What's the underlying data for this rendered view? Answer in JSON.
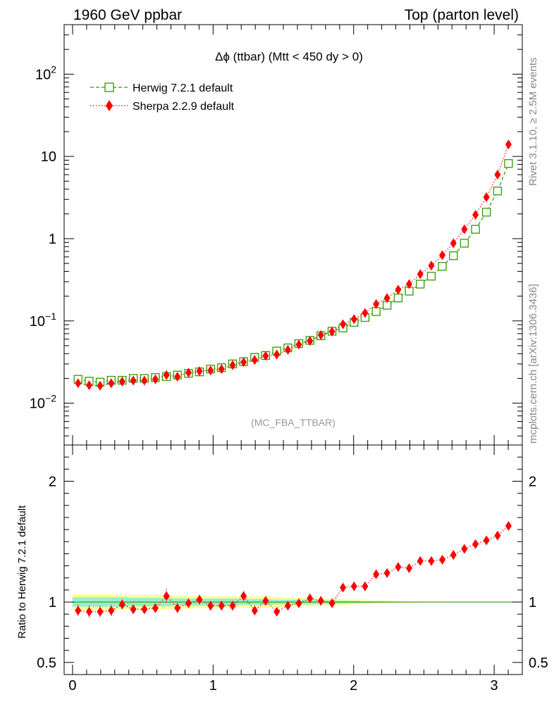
{
  "header": {
    "left": "1960 GeV ppbar",
    "right": "Top (parton level)"
  },
  "side_labels": {
    "rivet": "Rivet 3.1.10, ≥ 2.5M events",
    "mcplots": "mcplots.cern.ch [arXiv:1306.3436]"
  },
  "chart_data": {
    "type": "scatter",
    "title": "Δϕ (ttbar) (Mtt < 450 dy > 0)",
    "analysis_tag": "(MC_FBA_TTBAR)",
    "xlabel": "",
    "xlim": [
      -0.06,
      3.2
    ],
    "x_ticks": [
      "0",
      "1",
      "2",
      "3"
    ],
    "main": {
      "yscale": "log",
      "ylim": [
        0.0031,
        400
      ],
      "y_ticks": [
        {
          "value": 0.01,
          "base": "10",
          "exp": "−2"
        },
        {
          "value": 0.1,
          "base": "10",
          "exp": "−1"
        },
        {
          "value": 1,
          "base": "1",
          "exp": ""
        },
        {
          "value": 10,
          "base": "10",
          "exp": ""
        },
        {
          "value": 100,
          "base": "10",
          "exp": "2"
        }
      ]
    },
    "ratio": {
      "ylabel": "Ratio to Herwig 7.2.1 default",
      "ylim": [
        0.4,
        2.3
      ],
      "y_ticks": [
        "0.5",
        "1",
        "2"
      ],
      "y_tick_values": [
        0.5,
        1,
        2
      ],
      "band_inner": [
        0.04,
        0.04,
        0.04,
        0.04,
        0.04,
        0.035,
        0.035,
        0.035,
        0.035,
        0.03,
        0.03,
        0.03,
        0.03,
        0.03,
        0.03,
        0.025,
        0.025,
        0.025,
        0.02,
        0.02,
        0.02,
        0.02,
        0.015,
        0.015,
        0.012,
        0.01,
        0.008,
        0.006,
        0.005,
        0.004,
        0.003,
        0.003,
        0.002,
        0.002,
        0.002,
        0.001,
        0.001,
        0.001,
        0.001,
        0.001
      ],
      "band_outer": [
        0.065,
        0.065,
        0.065,
        0.065,
        0.06,
        0.06,
        0.06,
        0.06,
        0.06,
        0.055,
        0.055,
        0.05,
        0.05,
        0.05,
        0.05,
        0.045,
        0.045,
        0.045,
        0.04,
        0.04,
        0.035,
        0.035,
        0.03,
        0.03,
        0.025,
        0.02,
        0.016,
        0.012,
        0.01,
        0.008,
        0.006,
        0.005,
        0.004,
        0.003,
        0.003,
        0.002,
        0.002,
        0.002,
        0.002,
        0.002
      ]
    },
    "x": [
      0.039,
      0.118,
      0.196,
      0.275,
      0.353,
      0.432,
      0.511,
      0.589,
      0.668,
      0.746,
      0.825,
      0.903,
      0.982,
      1.06,
      1.139,
      1.217,
      1.296,
      1.374,
      1.453,
      1.532,
      1.61,
      1.689,
      1.767,
      1.846,
      1.924,
      2.003,
      2.081,
      2.16,
      2.238,
      2.317,
      2.395,
      2.474,
      2.553,
      2.631,
      2.71,
      2.788,
      2.867,
      2.945,
      3.024,
      3.102
    ],
    "series": [
      {
        "name": "Herwig 7.2.1 default",
        "color": "#339900",
        "marker": "open-square",
        "line": "dashed",
        "values": [
          0.0195,
          0.0185,
          0.018,
          0.019,
          0.019,
          0.02,
          0.02,
          0.0205,
          0.021,
          0.022,
          0.023,
          0.024,
          0.026,
          0.027,
          0.03,
          0.032,
          0.036,
          0.038,
          0.043,
          0.047,
          0.053,
          0.058,
          0.066,
          0.075,
          0.082,
          0.096,
          0.11,
          0.13,
          0.155,
          0.19,
          0.23,
          0.28,
          0.35,
          0.46,
          0.62,
          0.88,
          1.3,
          2.1,
          3.8,
          8.2
        ],
        "ratio": [
          1.0,
          1.0,
          1.0,
          1.0,
          1.0,
          1.0,
          1.0,
          1.0,
          1.0,
          1.0,
          1.0,
          1.0,
          1.0,
          1.0,
          1.0,
          1.0,
          1.0,
          1.0,
          1.0,
          1.0,
          1.0,
          1.0,
          1.0,
          1.0,
          1.0,
          1.0,
          1.0,
          1.0,
          1.0,
          1.0,
          1.0,
          1.0,
          1.0,
          1.0,
          1.0,
          1.0,
          1.0,
          1.0,
          1.0,
          1.0
        ]
      },
      {
        "name": "Sherpa 2.2.9 default",
        "color": "#ff0000",
        "marker": "filled-diamond",
        "line": "dotted",
        "values": [
          0.0175,
          0.0165,
          0.0163,
          0.0175,
          0.0183,
          0.0188,
          0.0188,
          0.0195,
          0.022,
          0.021,
          0.0235,
          0.0245,
          0.025,
          0.026,
          0.029,
          0.0315,
          0.0335,
          0.0375,
          0.039,
          0.0445,
          0.0515,
          0.057,
          0.0675,
          0.074,
          0.091,
          0.105,
          0.125,
          0.16,
          0.19,
          0.24,
          0.28,
          0.37,
          0.47,
          0.63,
          0.88,
          1.3,
          1.95,
          3.2,
          6.0,
          14.0
        ],
        "ratio": [
          0.93,
          0.92,
          0.92,
          0.93,
          0.98,
          0.94,
          0.94,
          0.95,
          1.05,
          0.95,
          0.99,
          1.02,
          0.97,
          0.97,
          0.97,
          1.05,
          0.93,
          1.01,
          0.92,
          0.97,
          0.99,
          1.03,
          1.01,
          0.99,
          1.12,
          1.13,
          1.13,
          1.23,
          1.24,
          1.29,
          1.28,
          1.34,
          1.34,
          1.35,
          1.39,
          1.44,
          1.48,
          1.51,
          1.55,
          1.63
        ],
        "ratio_err": [
          0.05,
          0.05,
          0.05,
          0.05,
          0.04,
          0.04,
          0.04,
          0.04,
          0.06,
          0.04,
          0.04,
          0.04,
          0.04,
          0.04,
          0.04,
          0.04,
          0.04,
          0.04,
          0.03,
          0.03,
          0.03,
          0.03,
          0.02,
          0.02,
          0.02,
          0.02,
          0.02,
          0.02,
          0.02,
          0.02,
          0.02,
          0.015,
          0.015,
          0.015,
          0.015,
          0.015,
          0.015,
          0.015,
          0.015,
          0.015
        ]
      }
    ]
  }
}
